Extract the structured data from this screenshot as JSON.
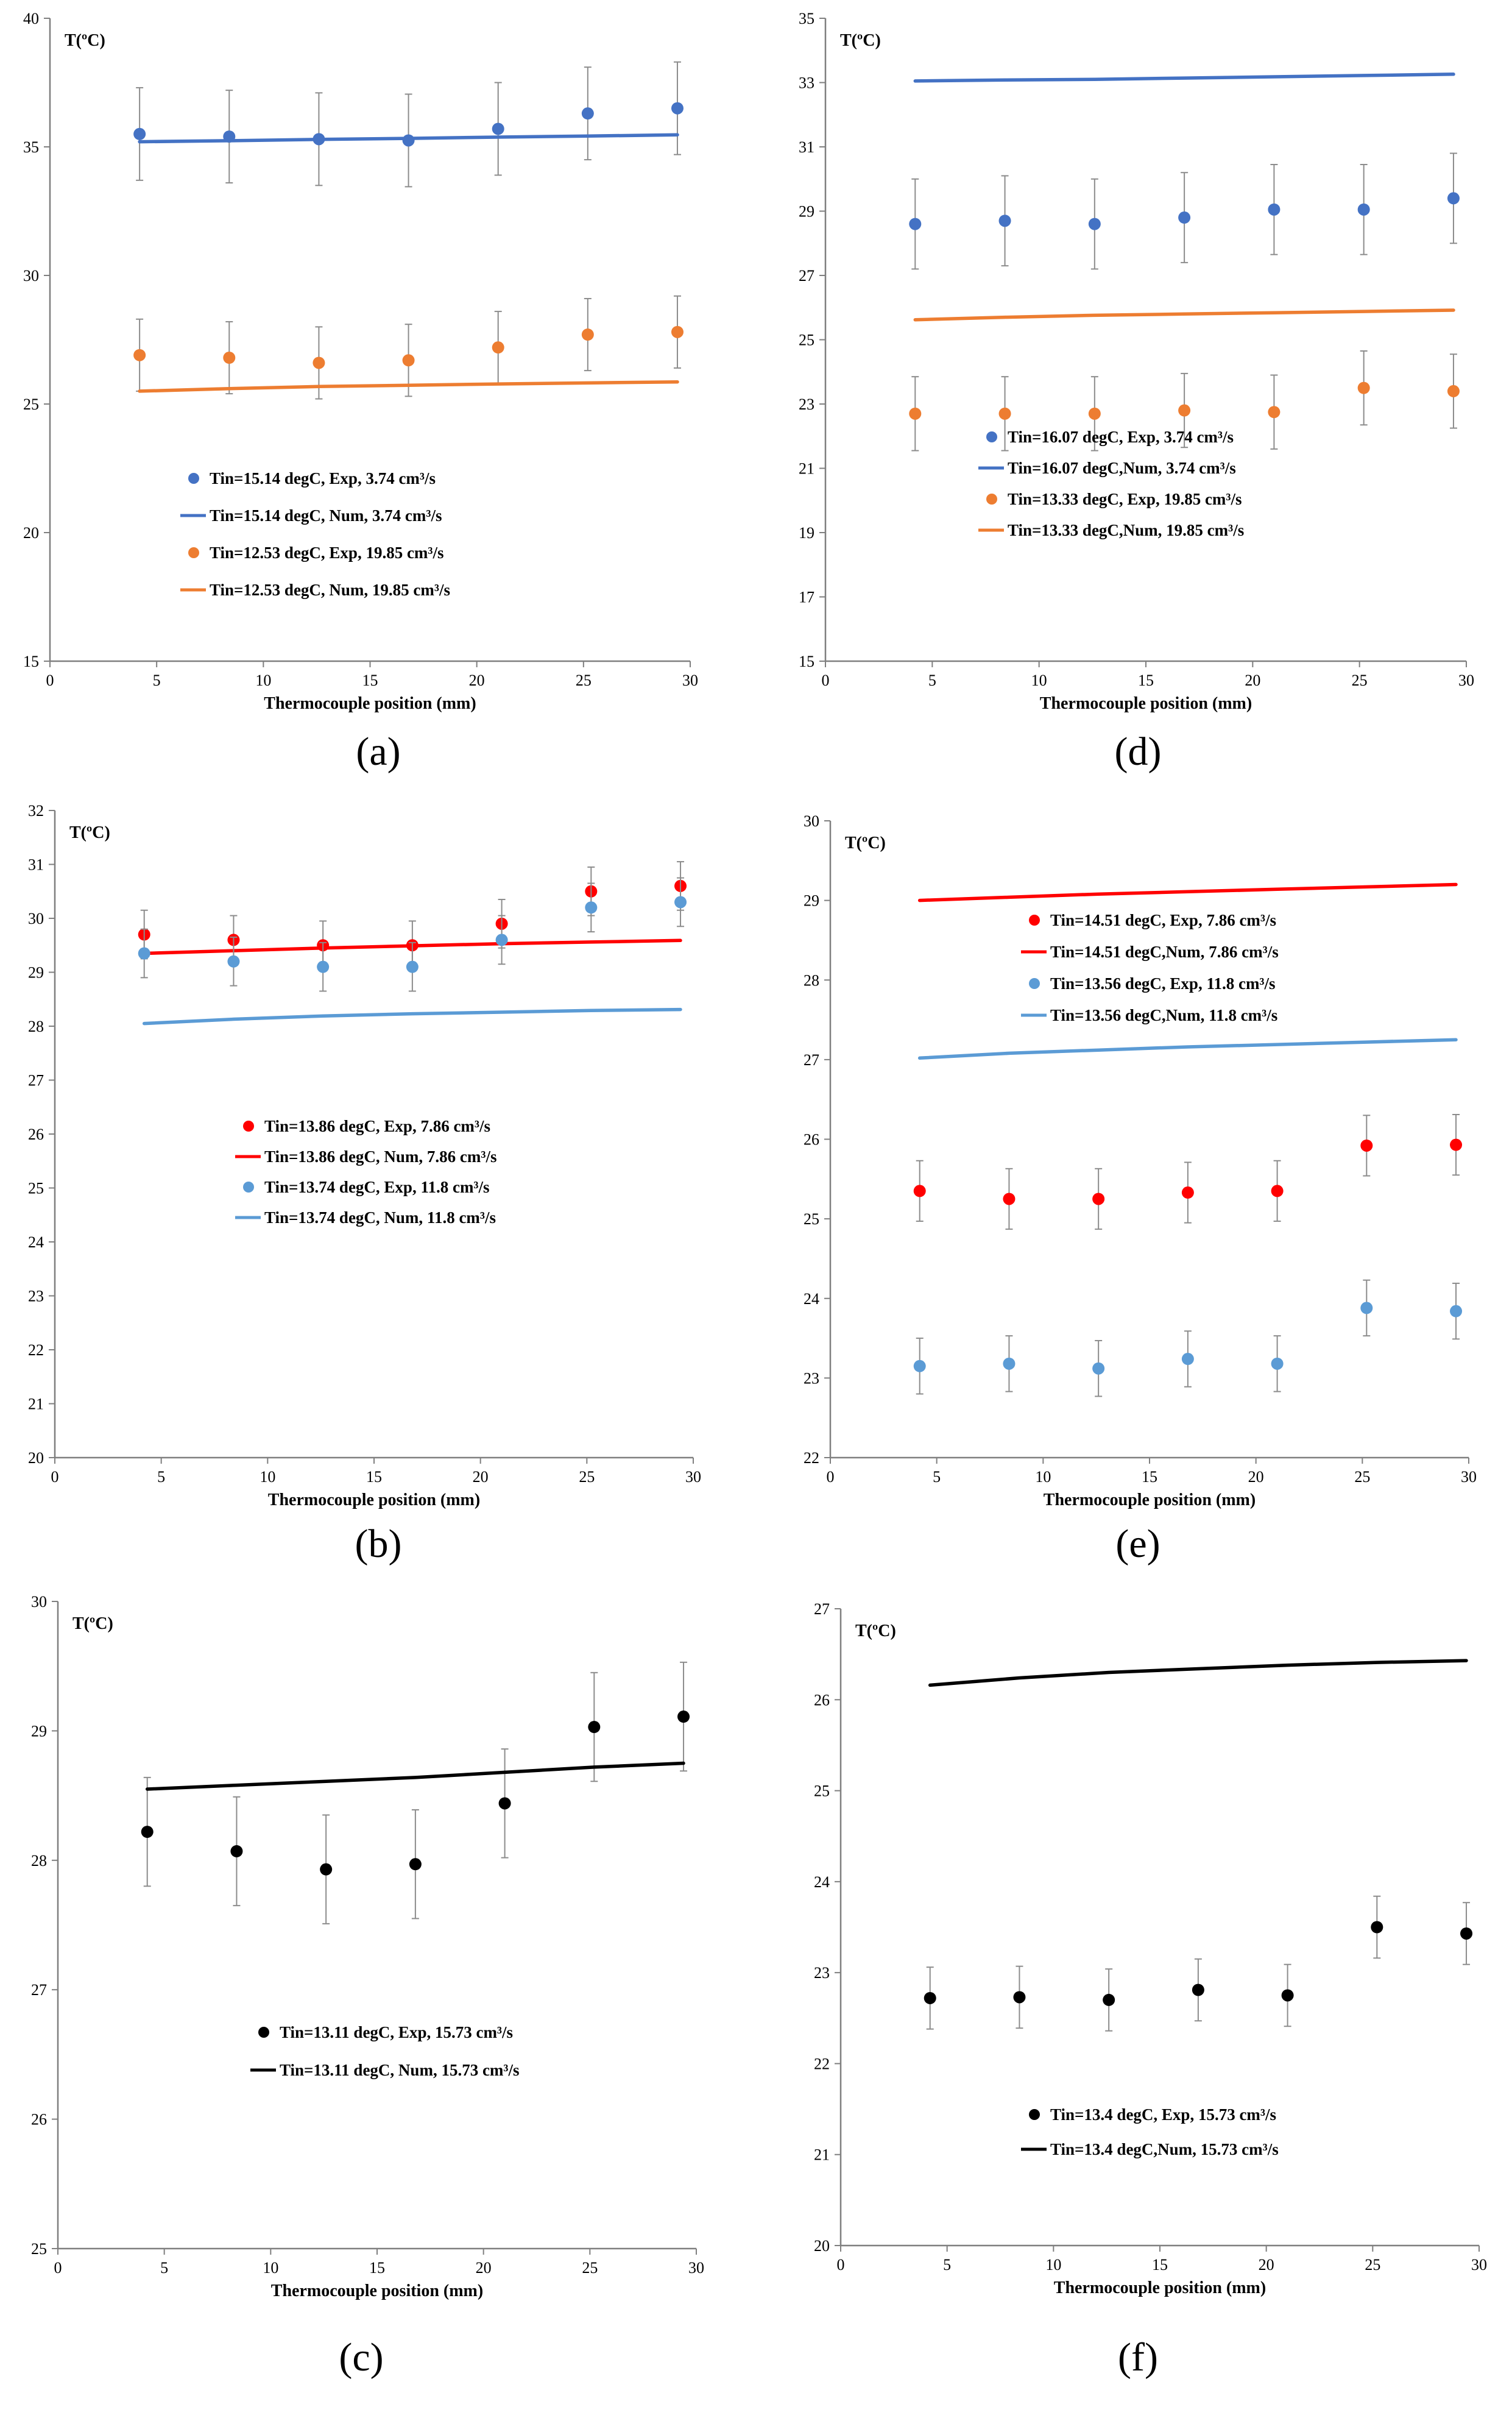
{
  "chart_data": [
    {
      "panel": "(a)",
      "type": "scatter",
      "title": "",
      "ylabel": "T(ºC)",
      "xlabel": "Thermocouple position (mm)",
      "xlim": [
        0,
        30
      ],
      "ylim": [
        15,
        40
      ],
      "xticks": [
        0,
        5,
        10,
        15,
        20,
        25,
        30
      ],
      "yticks": [
        15,
        20,
        25,
        30,
        35,
        40
      ],
      "legend_position": "lower-left",
      "series": [
        {
          "name": "Tin=15.14 degC, Exp, 3.74 cm³/s",
          "kind": "exp",
          "color": "#4472C4",
          "x": [
            4.2,
            8.4,
            12.6,
            16.8,
            21.0,
            25.2,
            29.4
          ],
          "y": [
            35.5,
            35.4,
            35.3,
            35.25,
            35.7,
            36.3,
            36.5
          ],
          "err": 1.8
        },
        {
          "name": "Tin=15.14 degC, Num, 3.74 cm³/s",
          "kind": "num",
          "color": "#4472C4",
          "x": [
            4.2,
            8.4,
            12.6,
            16.8,
            21.0,
            25.2,
            29.4
          ],
          "y": [
            35.2,
            35.24,
            35.29,
            35.33,
            35.38,
            35.42,
            35.47
          ]
        },
        {
          "name": "Tin=12.53 degC, Exp, 19.85 cm³/s",
          "kind": "exp",
          "color": "#ED7D31",
          "x": [
            4.2,
            8.4,
            12.6,
            16.8,
            21.0,
            25.2,
            29.4
          ],
          "y": [
            26.9,
            26.8,
            26.6,
            26.7,
            27.2,
            27.7,
            27.8
          ],
          "err": 1.4
        },
        {
          "name": "Tin=12.53 degC, Num, 19.85 cm³/s",
          "kind": "num",
          "color": "#ED7D31",
          "x": [
            4.2,
            8.4,
            12.6,
            16.8,
            21.0,
            25.2,
            29.4
          ],
          "y": [
            25.5,
            25.6,
            25.68,
            25.73,
            25.78,
            25.82,
            25.86
          ]
        }
      ]
    },
    {
      "panel": "(b)",
      "type": "scatter",
      "title": "",
      "ylabel": "T(ºC)",
      "xlabel": "Thermocouple position (mm)",
      "xlim": [
        0,
        30
      ],
      "ylim": [
        20,
        32
      ],
      "xticks": [
        0,
        5,
        10,
        15,
        20,
        25,
        30
      ],
      "yticks": [
        20,
        21,
        22,
        23,
        24,
        25,
        26,
        27,
        28,
        29,
        30,
        31,
        32
      ],
      "legend_position": "center",
      "series": [
        {
          "name": "Tin=13.86 degC, Exp, 7.86 cm³/s",
          "kind": "exp",
          "color": "#FF0000",
          "x": [
            4.2,
            8.4,
            12.6,
            16.8,
            21.0,
            25.2,
            29.4
          ],
          "y": [
            29.7,
            29.6,
            29.5,
            29.5,
            29.9,
            30.5,
            30.6
          ],
          "err": 0.45
        },
        {
          "name": "Tin=13.86 degC, Num, 7.86 cm³/s",
          "kind": "num",
          "color": "#FF0000",
          "x": [
            4.2,
            8.4,
            12.6,
            16.8,
            21.0,
            25.2,
            29.4
          ],
          "y": [
            29.35,
            29.4,
            29.45,
            29.49,
            29.53,
            29.56,
            29.59
          ]
        },
        {
          "name": "Tin=13.74 degC, Exp, 11.8 cm³/s",
          "kind": "exp",
          "color": "#5B9BD5",
          "x": [
            4.2,
            8.4,
            12.6,
            16.8,
            21.0,
            25.2,
            29.4
          ],
          "y": [
            29.35,
            29.2,
            29.1,
            29.1,
            29.6,
            30.2,
            30.3
          ],
          "err": 0.45
        },
        {
          "name": "Tin=13.74 degC, Num, 11.8 cm³/s",
          "kind": "num",
          "color": "#5B9BD5",
          "x": [
            4.2,
            8.4,
            12.6,
            16.8,
            21.0,
            25.2,
            29.4
          ],
          "y": [
            28.05,
            28.13,
            28.19,
            28.23,
            28.26,
            28.29,
            28.31
          ]
        }
      ]
    },
    {
      "panel": "(c)",
      "type": "scatter",
      "title": "",
      "ylabel": "T(ºC)",
      "xlabel": "Thermocouple position (mm)",
      "xlim": [
        0,
        30
      ],
      "ylim": [
        25,
        30
      ],
      "xticks": [
        0,
        5,
        10,
        15,
        20,
        25,
        30
      ],
      "yticks": [
        25,
        26,
        27,
        28,
        29,
        30
      ],
      "legend_position": "lower-center",
      "series": [
        {
          "name": "Tin=13.11 degC, Exp, 15.73 cm³/s",
          "kind": "exp",
          "color": "#000000",
          "x": [
            4.2,
            8.4,
            12.6,
            16.8,
            21.0,
            25.2,
            29.4
          ],
          "y": [
            28.22,
            28.07,
            27.93,
            27.97,
            28.44,
            29.03,
            29.11
          ],
          "err": 0.42
        },
        {
          "name": "Tin=13.11 degC, Num, 15.73 cm³/s",
          "kind": "num",
          "color": "#000000",
          "x": [
            4.2,
            8.4,
            12.6,
            16.8,
            21.0,
            25.2,
            29.4
          ],
          "y": [
            28.55,
            28.58,
            28.61,
            28.64,
            28.68,
            28.72,
            28.75
          ]
        }
      ]
    },
    {
      "panel": "(d)",
      "type": "scatter",
      "title": "",
      "ylabel": "T(ºC)",
      "xlabel": "Thermocouple position (mm)",
      "xlim": [
        0,
        30
      ],
      "ylim": [
        15,
        35
      ],
      "xticks": [
        0,
        5,
        10,
        15,
        20,
        25,
        30
      ],
      "yticks": [
        15,
        17,
        19,
        21,
        23,
        25,
        27,
        29,
        31,
        33,
        35
      ],
      "legend_position": "lower-left",
      "series": [
        {
          "name": "Tin=16.07 degC, Exp, 3.74 cm³/s",
          "kind": "exp",
          "color": "#4472C4",
          "x": [
            4.2,
            8.4,
            12.6,
            16.8,
            21.0,
            25.2,
            29.4
          ],
          "y": [
            28.6,
            28.7,
            28.6,
            28.8,
            29.05,
            29.05,
            29.4
          ],
          "err": 1.4
        },
        {
          "name": "Tin=16.07 degC,Num, 3.74 cm³/s",
          "kind": "num",
          "color": "#4472C4",
          "x": [
            4.2,
            8.4,
            12.6,
            16.8,
            21.0,
            25.2,
            29.4
          ],
          "y": [
            33.05,
            33.08,
            33.1,
            33.14,
            33.18,
            33.22,
            33.26
          ]
        },
        {
          "name": "Tin=13.33 degC, Exp, 19.85 cm³/s",
          "kind": "exp",
          "color": "#ED7D31",
          "x": [
            4.2,
            8.4,
            12.6,
            16.8,
            21.0,
            25.2,
            29.4
          ],
          "y": [
            22.7,
            22.7,
            22.7,
            22.8,
            22.75,
            23.5,
            23.4
          ],
          "err": 1.15
        },
        {
          "name": "Tin=13.33 degC,Num, 19.85 cm³/s",
          "kind": "num",
          "color": "#ED7D31",
          "x": [
            4.2,
            8.4,
            12.6,
            16.8,
            21.0,
            25.2,
            29.4
          ],
          "y": [
            25.62,
            25.7,
            25.76,
            25.8,
            25.84,
            25.88,
            25.92
          ]
        }
      ]
    },
    {
      "panel": "(e)",
      "type": "scatter",
      "title": "",
      "ylabel": "T(ºC)",
      "xlabel": "Thermocouple position (mm)",
      "xlim": [
        0,
        30
      ],
      "ylim": [
        22,
        30
      ],
      "xticks": [
        0,
        5,
        10,
        15,
        20,
        25,
        30
      ],
      "yticks": [
        22,
        23,
        24,
        25,
        26,
        27,
        28,
        29,
        30
      ],
      "legend_position": "top-center",
      "series": [
        {
          "name": "Tin=14.51 degC, Exp, 7.86 cm³/s",
          "kind": "exp",
          "color": "#FF0000",
          "x": [
            4.2,
            8.4,
            12.6,
            16.8,
            21.0,
            25.2,
            29.4
          ],
          "y": [
            25.35,
            25.25,
            25.25,
            25.33,
            25.35,
            25.92,
            25.93
          ],
          "err": 0.38
        },
        {
          "name": "Tin=14.51 degC,Num, 7.86 cm³/s",
          "kind": "num",
          "color": "#FF0000",
          "x": [
            4.2,
            8.4,
            12.6,
            16.8,
            21.0,
            25.2,
            29.4
          ],
          "y": [
            29.0,
            29.04,
            29.08,
            29.11,
            29.14,
            29.17,
            29.2
          ]
        },
        {
          "name": "Tin=13.56 degC, Exp, 11.8 cm³/s",
          "kind": "exp",
          "color": "#5B9BD5",
          "x": [
            4.2,
            8.4,
            12.6,
            16.8,
            21.0,
            25.2,
            29.4
          ],
          "y": [
            23.15,
            23.18,
            23.12,
            23.24,
            23.18,
            23.88,
            23.84
          ],
          "err": 0.35
        },
        {
          "name": "Tin=13.56 degC,Num, 11.8 cm³/s",
          "kind": "num",
          "color": "#5B9BD5",
          "x": [
            4.2,
            8.4,
            12.6,
            16.8,
            21.0,
            25.2,
            29.4
          ],
          "y": [
            27.02,
            27.08,
            27.12,
            27.16,
            27.19,
            27.22,
            27.25
          ]
        }
      ]
    },
    {
      "panel": "(f)",
      "type": "scatter",
      "title": "",
      "ylabel": "T(ºC)",
      "xlabel": "Thermocouple position (mm)",
      "xlim": [
        0,
        30
      ],
      "ylim": [
        20,
        27
      ],
      "xticks": [
        0,
        5,
        10,
        15,
        20,
        25,
        30
      ],
      "yticks": [
        20,
        21,
        22,
        23,
        24,
        25,
        26,
        27
      ],
      "legend_position": "lower-center",
      "series": [
        {
          "name": "Tin=13.4 degC, Exp, 15.73 cm³/s",
          "kind": "exp",
          "color": "#000000",
          "x": [
            4.2,
            8.4,
            12.6,
            16.8,
            21.0,
            25.2,
            29.4
          ],
          "y": [
            22.72,
            22.73,
            22.7,
            22.81,
            22.75,
            23.5,
            23.43
          ],
          "err": 0.34
        },
        {
          "name": "Tin=13.4 degC,Num, 15.73 cm³/s",
          "kind": "num",
          "color": "#000000",
          "x": [
            4.2,
            8.4,
            12.6,
            16.8,
            21.0,
            25.2,
            29.4
          ],
          "y": [
            26.16,
            26.24,
            26.3,
            26.34,
            26.38,
            26.41,
            26.43
          ]
        }
      ]
    }
  ]
}
